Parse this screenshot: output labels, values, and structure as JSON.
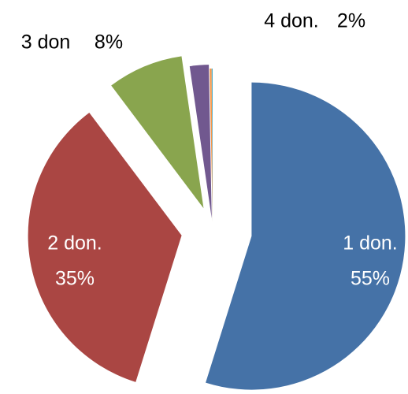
{
  "chart_data": {
    "type": "pie",
    "categories": [
      "1 don.",
      "2 don.",
      "3 don",
      "4 don.",
      null,
      null
    ],
    "values": [
      55,
      35,
      8,
      2,
      0.2,
      0.1
    ],
    "value_labels": [
      "55%",
      "35%",
      "8%",
      "2%",
      null,
      null
    ],
    "colors": [
      "#4572a7",
      "#aa4643",
      "#89a54e",
      "#71588f",
      "#f79646",
      "#4bacc6"
    ],
    "label_colors": [
      "#ffffff",
      "#ffffff",
      "#000000",
      "#000000",
      null,
      null
    ]
  }
}
